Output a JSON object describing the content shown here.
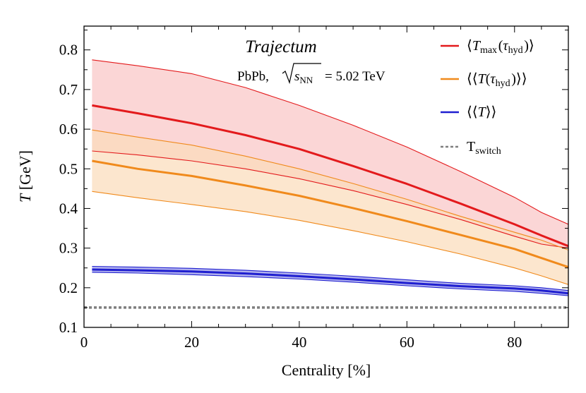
{
  "chart_data": {
    "type": "line",
    "title": "Trajectum",
    "subtitle": {
      "system": "PbPb,",
      "energy_var": "s",
      "energy_sub": "NN",
      "energy_value": "= 5.02 TeV"
    },
    "xlabel": "Centrality [%]",
    "ylabel": "T [GeV]",
    "xlim": [
      0,
      90
    ],
    "ylim": [
      0.1,
      0.86
    ],
    "xticks": [
      0,
      20,
      40,
      60,
      80
    ],
    "xtick_labels": [
      "0",
      "20",
      "40",
      "60",
      "80"
    ],
    "yticks": [
      0.1,
      0.2,
      0.3,
      0.4,
      0.5,
      0.6,
      0.7,
      0.8
    ],
    "ytick_labels": [
      "0.1",
      "0.2",
      "0.3",
      "0.4",
      "0.5",
      "0.6",
      "0.7",
      "0.8"
    ],
    "x": [
      1.5,
      10,
      20,
      30,
      40,
      50,
      60,
      70,
      80,
      85,
      90
    ],
    "series": [
      {
        "name": "Tmax",
        "legend": {
          "prefix": "⟨",
          "var": "T",
          "sub": "max",
          "mid": "(",
          "var2": "τ",
          "sub2": "hyd",
          "suffix": ")⟩"
        },
        "color": "#e31a1c",
        "band_color": "#f9c5c5",
        "center": [
          0.66,
          0.64,
          0.615,
          0.585,
          0.55,
          0.507,
          0.462,
          0.412,
          0.36,
          0.332,
          0.305
        ],
        "upper": [
          0.775,
          0.76,
          0.74,
          0.705,
          0.66,
          0.61,
          0.555,
          0.493,
          0.428,
          0.39,
          0.36
        ],
        "lower": [
          0.545,
          0.535,
          0.52,
          0.5,
          0.475,
          0.445,
          0.41,
          0.372,
          0.33,
          0.31,
          0.3
        ]
      },
      {
        "name": "T(tau_hyd)",
        "legend": {
          "prefix": "⟨⟨",
          "var": "T",
          "sub": "",
          "mid": "(",
          "var2": "τ",
          "sub2": "hyd",
          "suffix": ")⟩⟩"
        },
        "color": "#f08a1c",
        "band_color": "#fbdcb9",
        "center": [
          0.52,
          0.5,
          0.482,
          0.458,
          0.432,
          0.401,
          0.368,
          0.333,
          0.298,
          0.275,
          0.252
        ],
        "upper": [
          0.598,
          0.58,
          0.56,
          0.532,
          0.5,
          0.463,
          0.423,
          0.38,
          0.34,
          0.32,
          0.295
        ],
        "lower": [
          0.443,
          0.427,
          0.41,
          0.392,
          0.37,
          0.344,
          0.316,
          0.285,
          0.25,
          0.23,
          0.208
        ]
      },
      {
        "name": "T_avg",
        "legend": {
          "prefix": "⟨⟨",
          "var": "T",
          "sub": "",
          "mid": "",
          "var2": "",
          "sub2": "",
          "suffix": "⟩⟩"
        },
        "color": "#1f1fd0",
        "band_color": "#9a9ae8",
        "center": [
          0.246,
          0.244,
          0.241,
          0.236,
          0.229,
          0.221,
          0.212,
          0.204,
          0.198,
          0.193,
          0.186
        ],
        "upper": [
          0.254,
          0.252,
          0.249,
          0.244,
          0.237,
          0.229,
          0.22,
          0.211,
          0.205,
          0.2,
          0.193
        ],
        "lower": [
          0.239,
          0.237,
          0.233,
          0.228,
          0.222,
          0.214,
          0.205,
          0.197,
          0.191,
          0.186,
          0.18
        ]
      }
    ],
    "reference_line": {
      "name": "Tswitch",
      "label_main": "T",
      "label_sub": "switch",
      "value": 0.15,
      "color": "#7f7f7f",
      "style": "dashed"
    },
    "legend_position": "top-right",
    "grid": false
  }
}
